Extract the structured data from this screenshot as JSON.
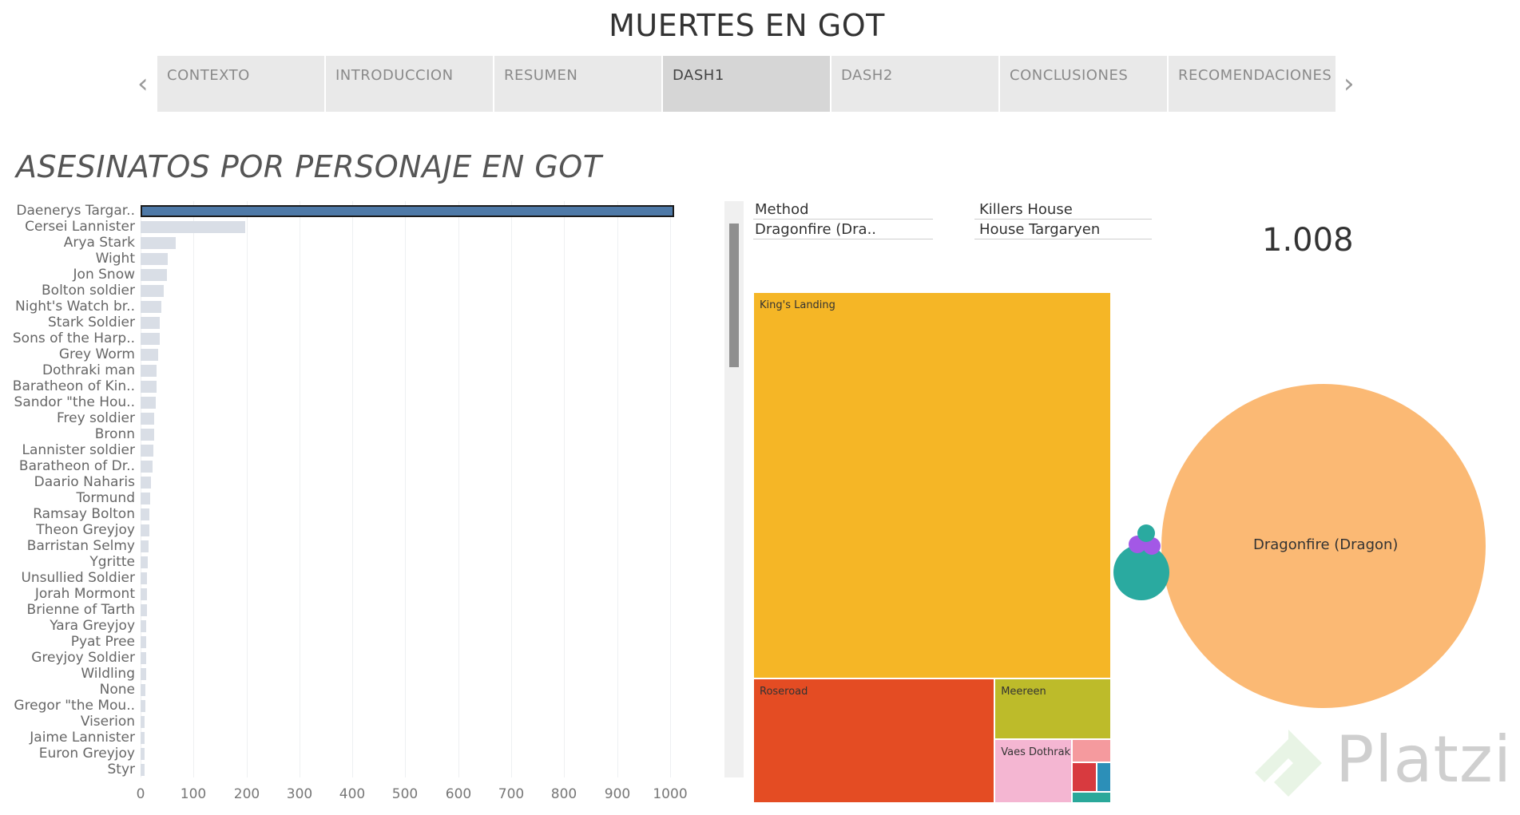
{
  "dashboard": {
    "title": "MUERTES EN GOT"
  },
  "nav": {
    "tabs": [
      "CONTEXTO",
      "INTRODUCCION",
      "RESUMEN",
      "DASH1",
      "DASH2",
      "CONCLUSIONES",
      "RECOMENDACIONES"
    ],
    "active": "DASH1"
  },
  "sheet": {
    "title": "ASESINATOS POR PERSONAJE EN GOT"
  },
  "filters": {
    "method": {
      "label": "Method",
      "value": "Dragonfire (Dra.."
    },
    "killers_house": {
      "label": "Killers House",
      "value": "House Targaryen"
    }
  },
  "kpi": {
    "value": "1.008"
  },
  "chart_data": [
    {
      "type": "bar",
      "orientation": "horizontal",
      "title": "ASESINATOS POR PERSONAJE EN GOT",
      "categories": [
        "Daenerys Targar..",
        "Cersei Lannister",
        "Arya Stark",
        "Wight",
        "Jon Snow",
        "Bolton soldier",
        "Night's Watch br..",
        "Stark Soldier",
        "Sons of the Harp..",
        "Grey Worm",
        "Dothraki man",
        "Baratheon of Kin..",
        "Sandor \"the Hou..",
        "Frey soldier",
        "Bronn",
        "Lannister soldier",
        "Baratheon of Dr..",
        "Daario Naharis",
        "Tormund",
        "Ramsay Bolton",
        "Theon Greyjoy",
        "Barristan Selmy",
        "Ygritte",
        "Unsullied Soldier",
        "Jorah Mormont",
        "Brienne of Tarth",
        "Yara Greyjoy",
        "Pyat Pree",
        "Greyjoy Soldier",
        "Wildling",
        "None",
        "Gregor \"the Mou..",
        "Viserion",
        "Jaime Lannister",
        "Euron Greyjoy",
        "Styr"
      ],
      "values": [
        1008,
        198,
        66,
        52,
        50,
        44,
        39,
        36,
        36,
        33,
        30,
        30,
        29,
        26,
        26,
        24,
        23,
        20,
        18,
        17,
        16,
        15,
        13,
        12,
        12,
        12,
        11,
        11,
        10,
        10,
        9,
        9,
        8,
        8,
        7,
        7
      ],
      "selected": "Daenerys Targar..",
      "xlim": [
        0,
        1050
      ],
      "xticks": [
        0,
        100,
        200,
        300,
        400,
        500,
        600,
        700,
        800,
        900,
        1000
      ]
    },
    {
      "type": "treemap",
      "items": [
        {
          "name": "King's Landing",
          "value": 780,
          "color": "#f5b626"
        },
        {
          "name": "Roseroad",
          "value": 170,
          "color": "#e44c23"
        },
        {
          "name": "Meereen",
          "value": 40,
          "color": "#bdbb2a"
        },
        {
          "name": "Vaes Dothrak",
          "value": 28,
          "color": "#f4b6d2"
        },
        {
          "name": "",
          "value": 5,
          "color": "#f59a9e"
        },
        {
          "name": "",
          "value": 4,
          "color": "#d83a3f"
        },
        {
          "name": "",
          "value": 3,
          "color": "#2c8fb8"
        },
        {
          "name": "",
          "value": 2,
          "color": "#2aa89a"
        }
      ]
    },
    {
      "type": "bubble",
      "items": [
        {
          "name": "Dragonfire (Dragon)",
          "value": 1008,
          "color": "#fbb974"
        },
        {
          "name": "",
          "value": 30,
          "color": "#2aaaa0"
        },
        {
          "name": "",
          "value": 3,
          "color": "#a358e6"
        },
        {
          "name": "",
          "value": 3,
          "color": "#a358e6"
        },
        {
          "name": "",
          "value": 3,
          "color": "#2aaaa0"
        }
      ]
    }
  ],
  "watermark": {
    "text": "Platzi"
  }
}
